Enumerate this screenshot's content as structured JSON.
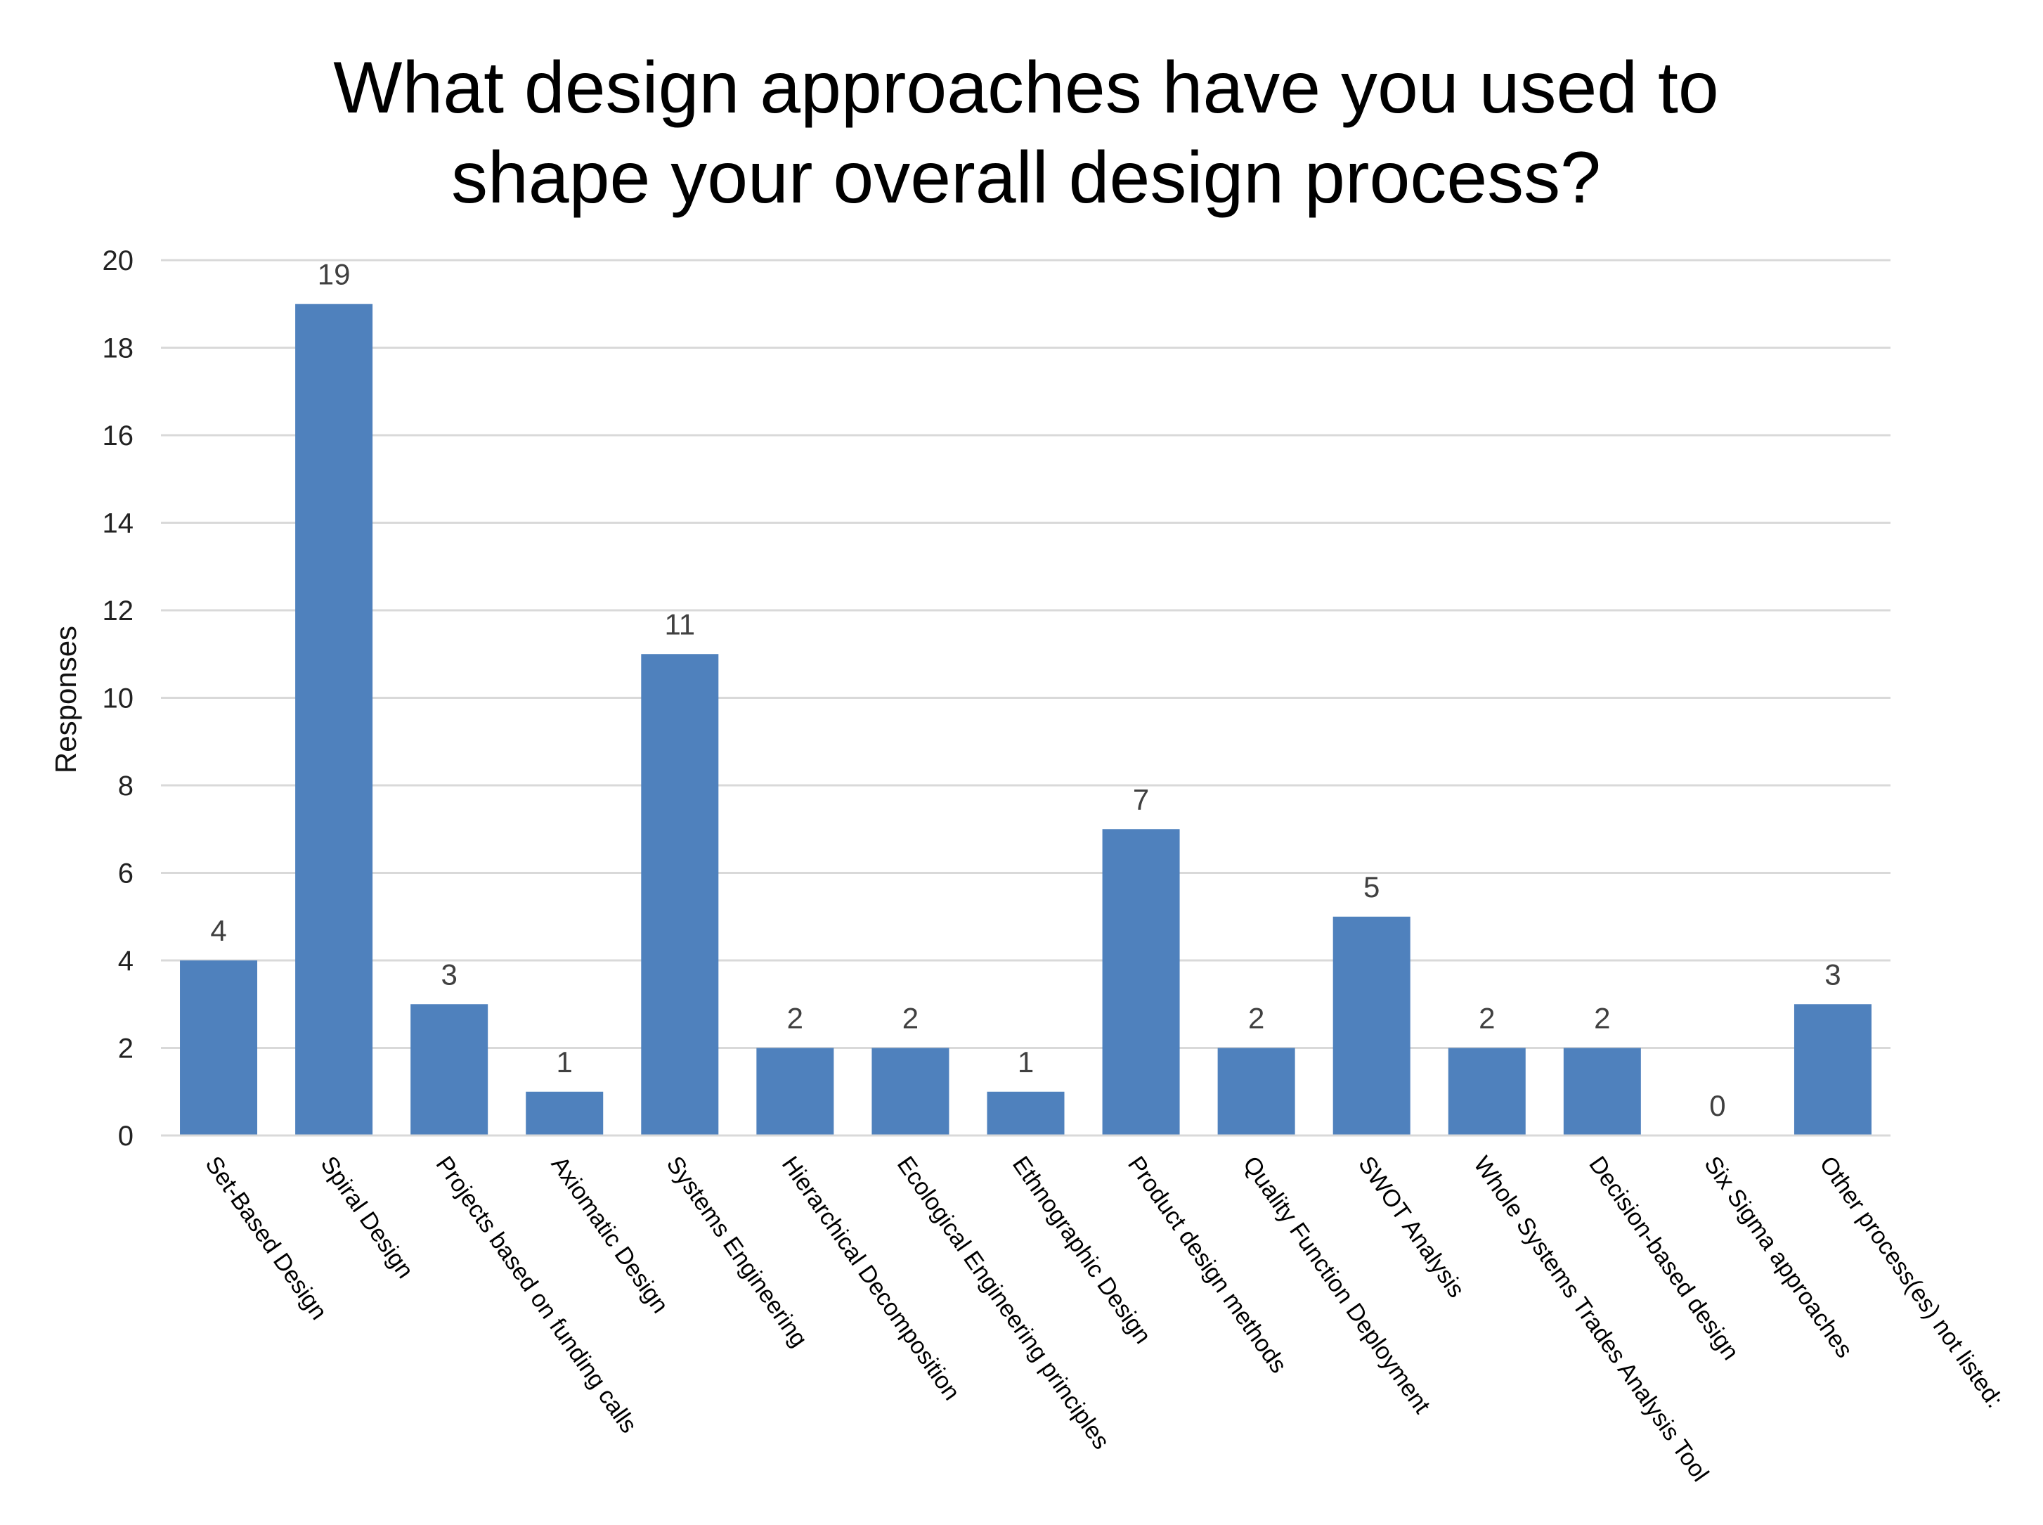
{
  "chart_data": {
    "type": "bar",
    "title_lines": [
      "What design approaches have you used to",
      "shape your overall design process?"
    ],
    "ylabel": "Responses",
    "xlabel": "",
    "ylim": [
      0,
      20
    ],
    "yticks": [
      0,
      2,
      4,
      6,
      8,
      10,
      12,
      14,
      16,
      18,
      20
    ],
    "grid": true,
    "legend": "none",
    "bar_color": "#4F81BD",
    "categories": [
      "Set-Based Design",
      "Spiral Design",
      "Projects based on funding calls",
      "Axiomatic Design",
      "Systems Engineering",
      "Hierarchical Decomposition",
      "Ecological Engineering principles",
      "Ethnographic Design",
      "Product design methods",
      "Quality Function Deployment",
      "SWOT Analysis",
      "Whole Systems Trades Analysis Tool",
      "Decision-based design",
      "Six Sigma approaches",
      "Other process(es) not listed:"
    ],
    "values": [
      4,
      19,
      3,
      1,
      11,
      2,
      2,
      1,
      7,
      2,
      5,
      2,
      2,
      0,
      3
    ]
  }
}
